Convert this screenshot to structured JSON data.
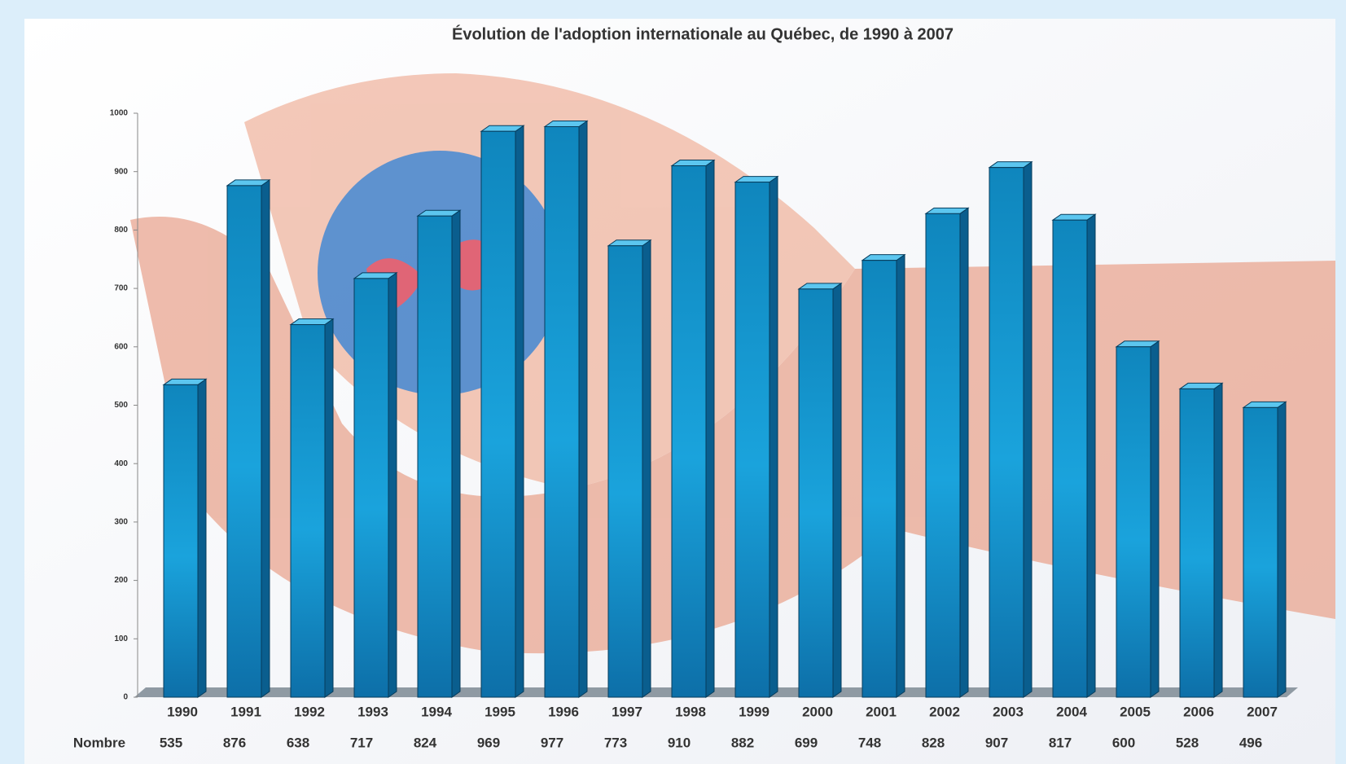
{
  "chart_data": {
    "type": "bar",
    "title": "Évolution de l'adoption internationale au Québec, de 1990 à 2007",
    "categories": [
      "1990",
      "1991",
      "1992",
      "1993",
      "1994",
      "1995",
      "1996",
      "1997",
      "1998",
      "1999",
      "2000",
      "2001",
      "2002",
      "2003",
      "2004",
      "2005",
      "2006",
      "2007"
    ],
    "values": [
      535,
      876,
      638,
      717,
      824,
      969,
      977,
      773,
      910,
      882,
      699,
      748,
      828,
      907,
      817,
      600,
      528,
      496
    ],
    "row_label": "Nombre",
    "color": "#1a8fcf",
    "ylim": [
      0,
      1000
    ],
    "yticks": [
      0,
      100,
      200,
      300,
      400,
      500,
      600,
      700,
      800,
      900,
      1000
    ]
  }
}
